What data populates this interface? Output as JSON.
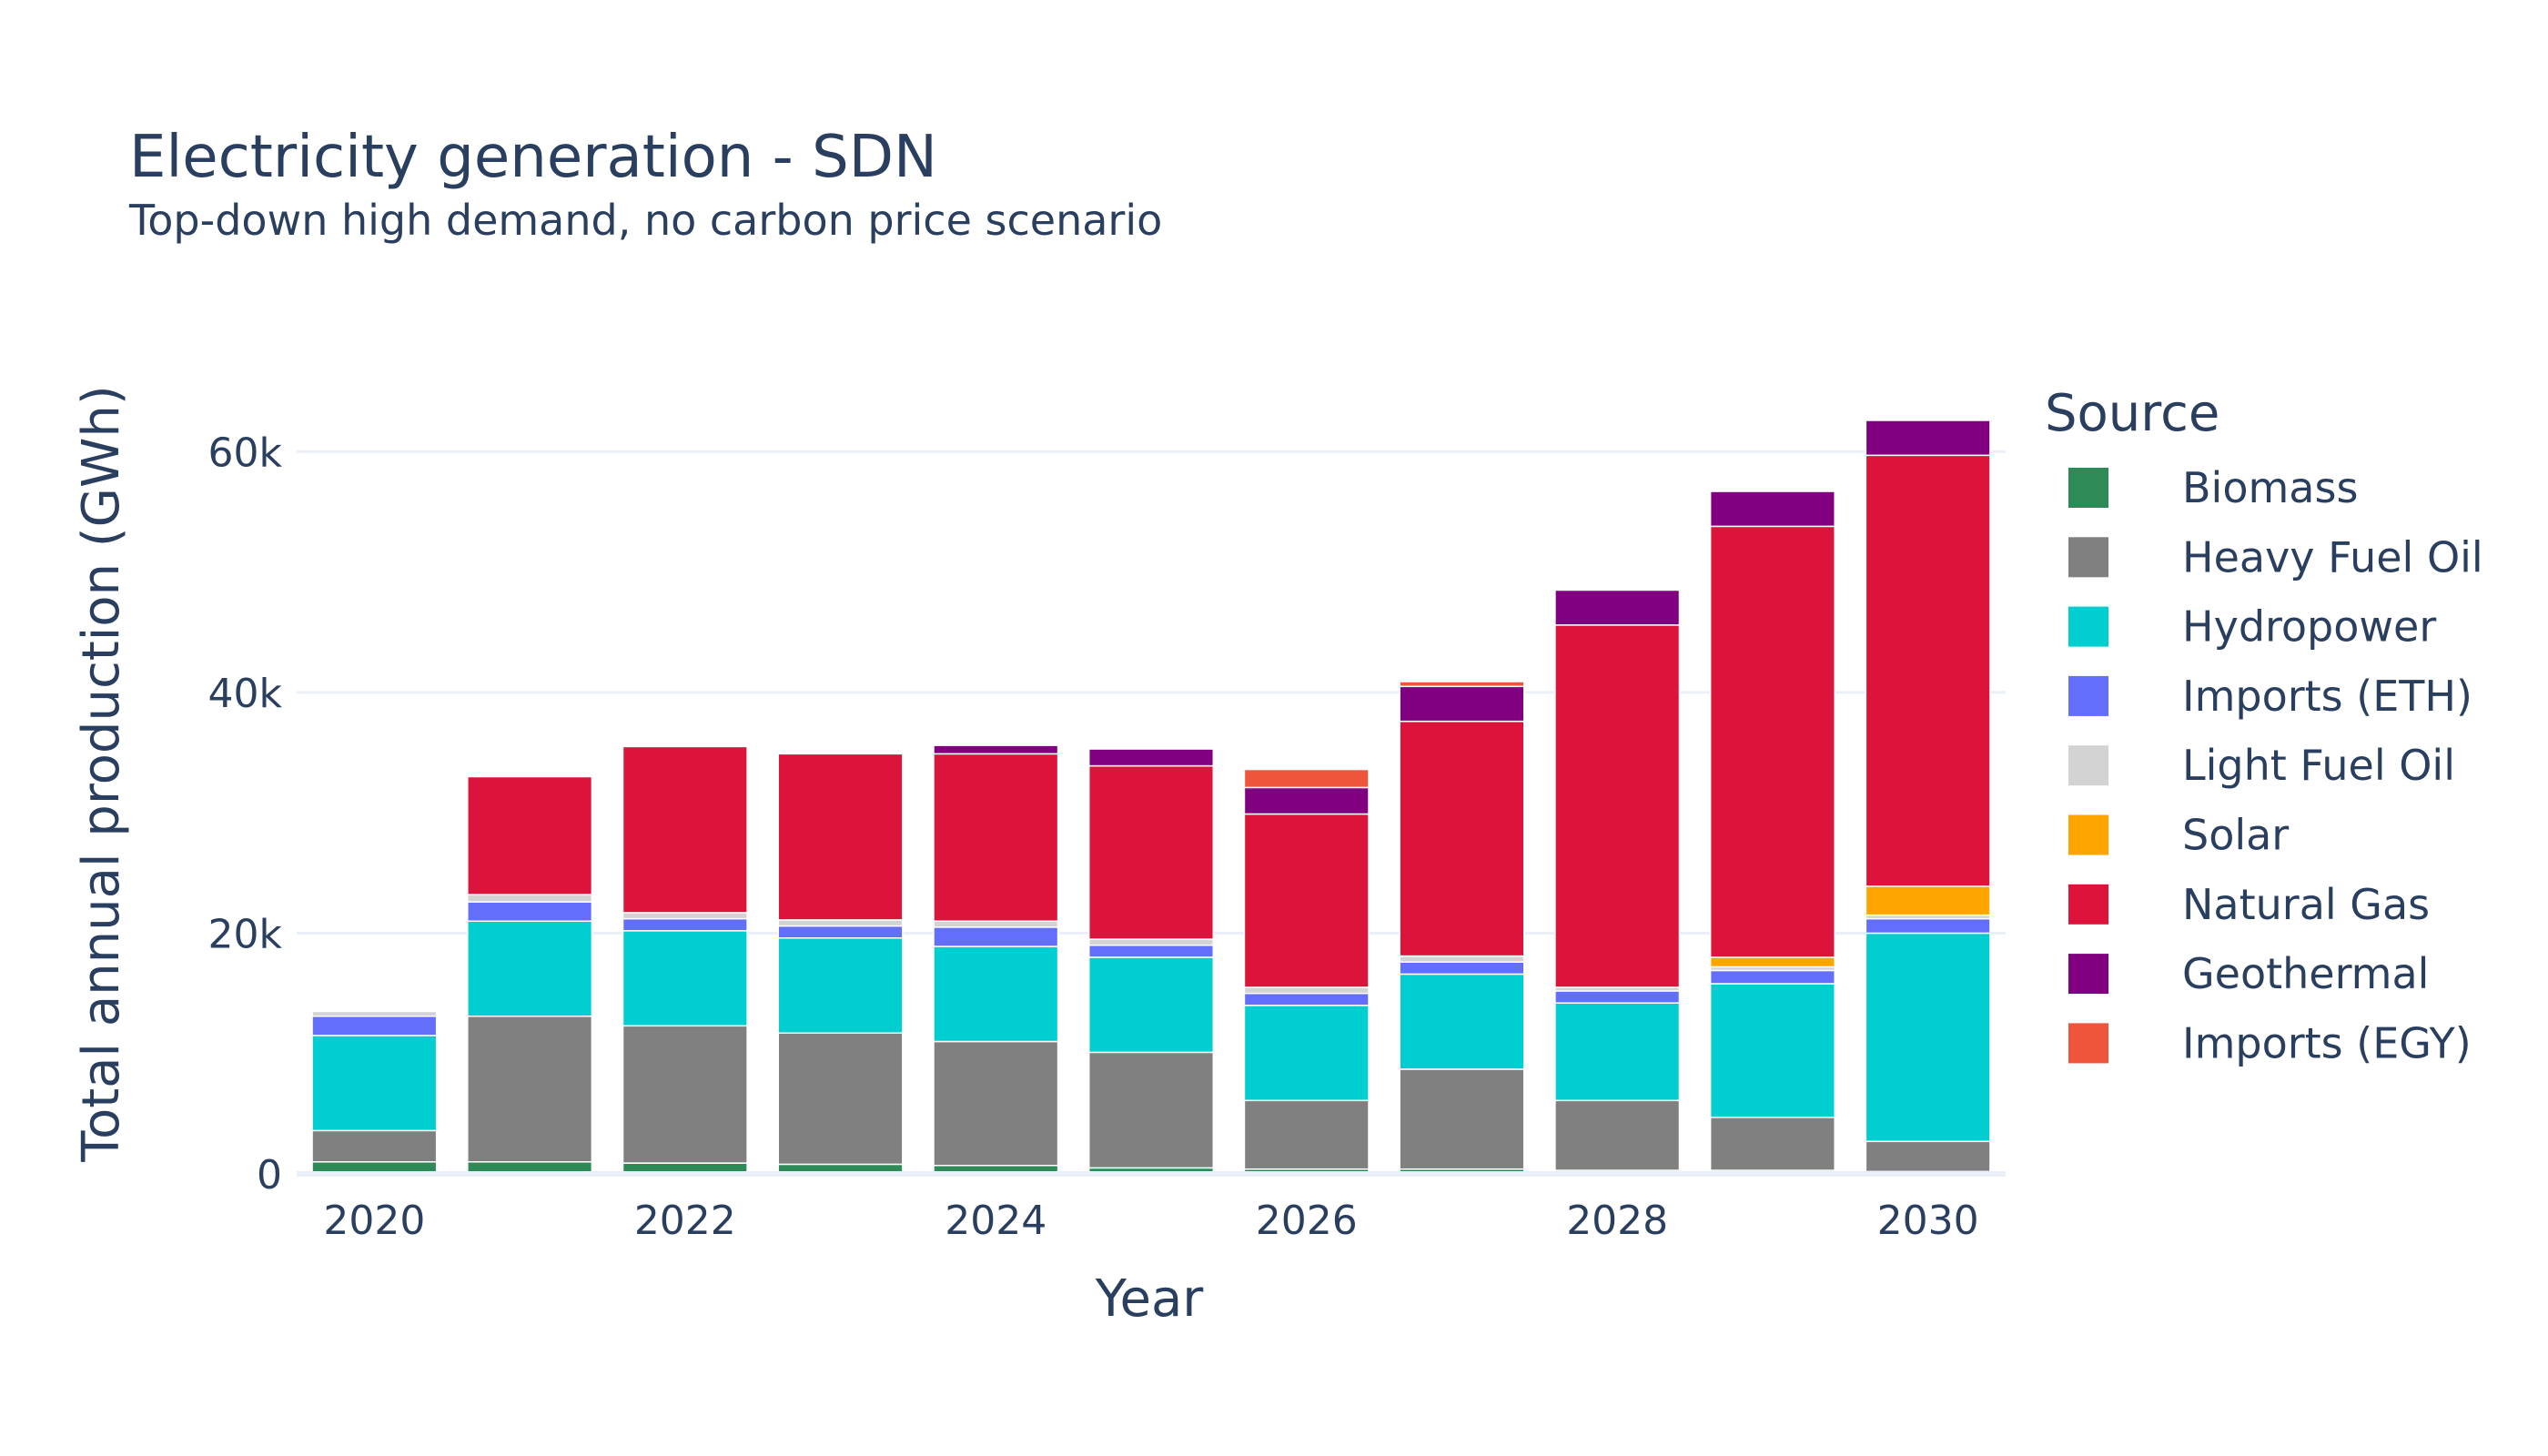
{
  "chart_data": {
    "type": "bar",
    "barmode": "stack",
    "title": "Electricity generation - SDN",
    "subtitle": "Top-down high demand, no carbon price scenario",
    "xlabel": "Year",
    "ylabel": "Total annual production (GWh)",
    "ylim": [
      0,
      66000
    ],
    "yticks": [
      0,
      20000,
      40000,
      60000
    ],
    "ytick_labels": [
      "0",
      "20k",
      "40k",
      "60k"
    ],
    "xticks": [
      2020,
      2022,
      2024,
      2026,
      2028,
      2030
    ],
    "xtick_labels": [
      "2020",
      "2022",
      "2024",
      "2026",
      "2028",
      "2030"
    ],
    "x": [
      2020,
      2021,
      2022,
      2023,
      2024,
      2025,
      2026,
      2027,
      2028,
      2029,
      2030
    ],
    "legend_title": "Source",
    "legend_position": "right",
    "grid": true,
    "series": [
      {
        "name": "Biomass",
        "color": "#2e8b57",
        "values": [
          1000,
          1000,
          900,
          800,
          700,
          500,
          400,
          400,
          300,
          300,
          200
        ]
      },
      {
        "name": "Heavy Fuel Oil",
        "color": "#808080",
        "values": [
          2600,
          12100,
          11400,
          10900,
          10300,
          9600,
          5700,
          8300,
          5800,
          4400,
          2500
        ]
      },
      {
        "name": "Hydropower",
        "color": "#00ced1",
        "values": [
          7900,
          7900,
          7900,
          7900,
          7900,
          7900,
          7900,
          7900,
          8100,
          11100,
          17300
        ]
      },
      {
        "name": "Imports (ETH)",
        "color": "#636efa",
        "values": [
          1600,
          1600,
          1000,
          1000,
          1600,
          1000,
          1000,
          1000,
          1000,
          1100,
          1200
        ]
      },
      {
        "name": "Light Fuel Oil",
        "color": "#d3d3d3",
        "values": [
          400,
          600,
          500,
          500,
          500,
          500,
          500,
          500,
          300,
          300,
          300
        ]
      },
      {
        "name": "Solar",
        "color": "#ffa500",
        "values": [
          0,
          0,
          0,
          0,
          0,
          0,
          0,
          0,
          0,
          800,
          2400
        ]
      },
      {
        "name": "Natural Gas",
        "color": "#dc143c",
        "values": [
          0,
          9800,
          13800,
          13800,
          13900,
          14400,
          14400,
          19500,
          30100,
          35800,
          35800
        ]
      },
      {
        "name": "Geothermal",
        "color": "#800080",
        "values": [
          0,
          0,
          0,
          0,
          700,
          1400,
          2200,
          2900,
          2900,
          2900,
          2900
        ]
      },
      {
        "name": "Imports (EGY)",
        "color": "#ef553b",
        "values": [
          0,
          0,
          0,
          0,
          0,
          0,
          1500,
          400,
          0,
          0,
          0
        ]
      }
    ]
  }
}
